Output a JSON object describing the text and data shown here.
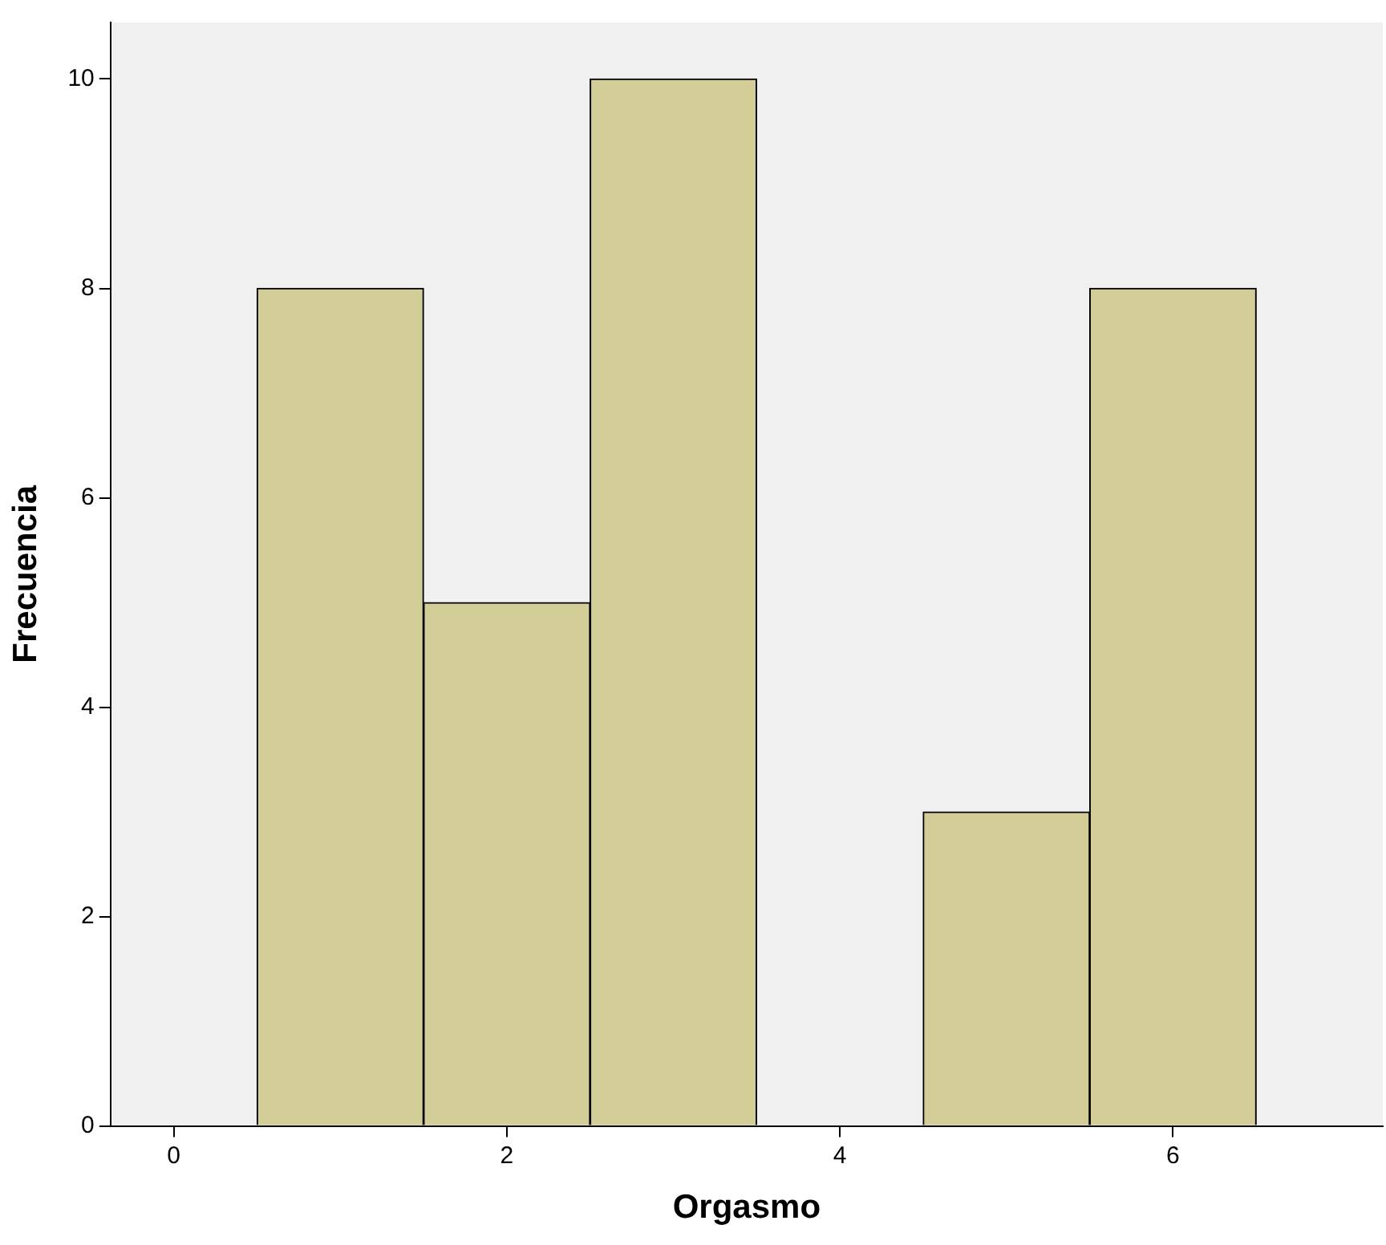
{
  "chart_data": {
    "type": "histogram",
    "xlabel": "Orgasmo",
    "ylabel": "Frecuencia",
    "bins": [
      0.5,
      1.5,
      2.5,
      3.5,
      4.5,
      5.5,
      6.5
    ],
    "values": [
      8,
      5,
      10,
      0,
      3,
      8
    ],
    "color": "#d3ce97",
    "xlim": [
      -0.38,
      7.26
    ],
    "xticks": [
      0,
      2,
      4,
      6
    ],
    "ylim": [
      0,
      10.54
    ],
    "yticks": [
      0,
      2,
      4,
      6,
      8,
      10
    ],
    "grid": false,
    "legend": false
  }
}
